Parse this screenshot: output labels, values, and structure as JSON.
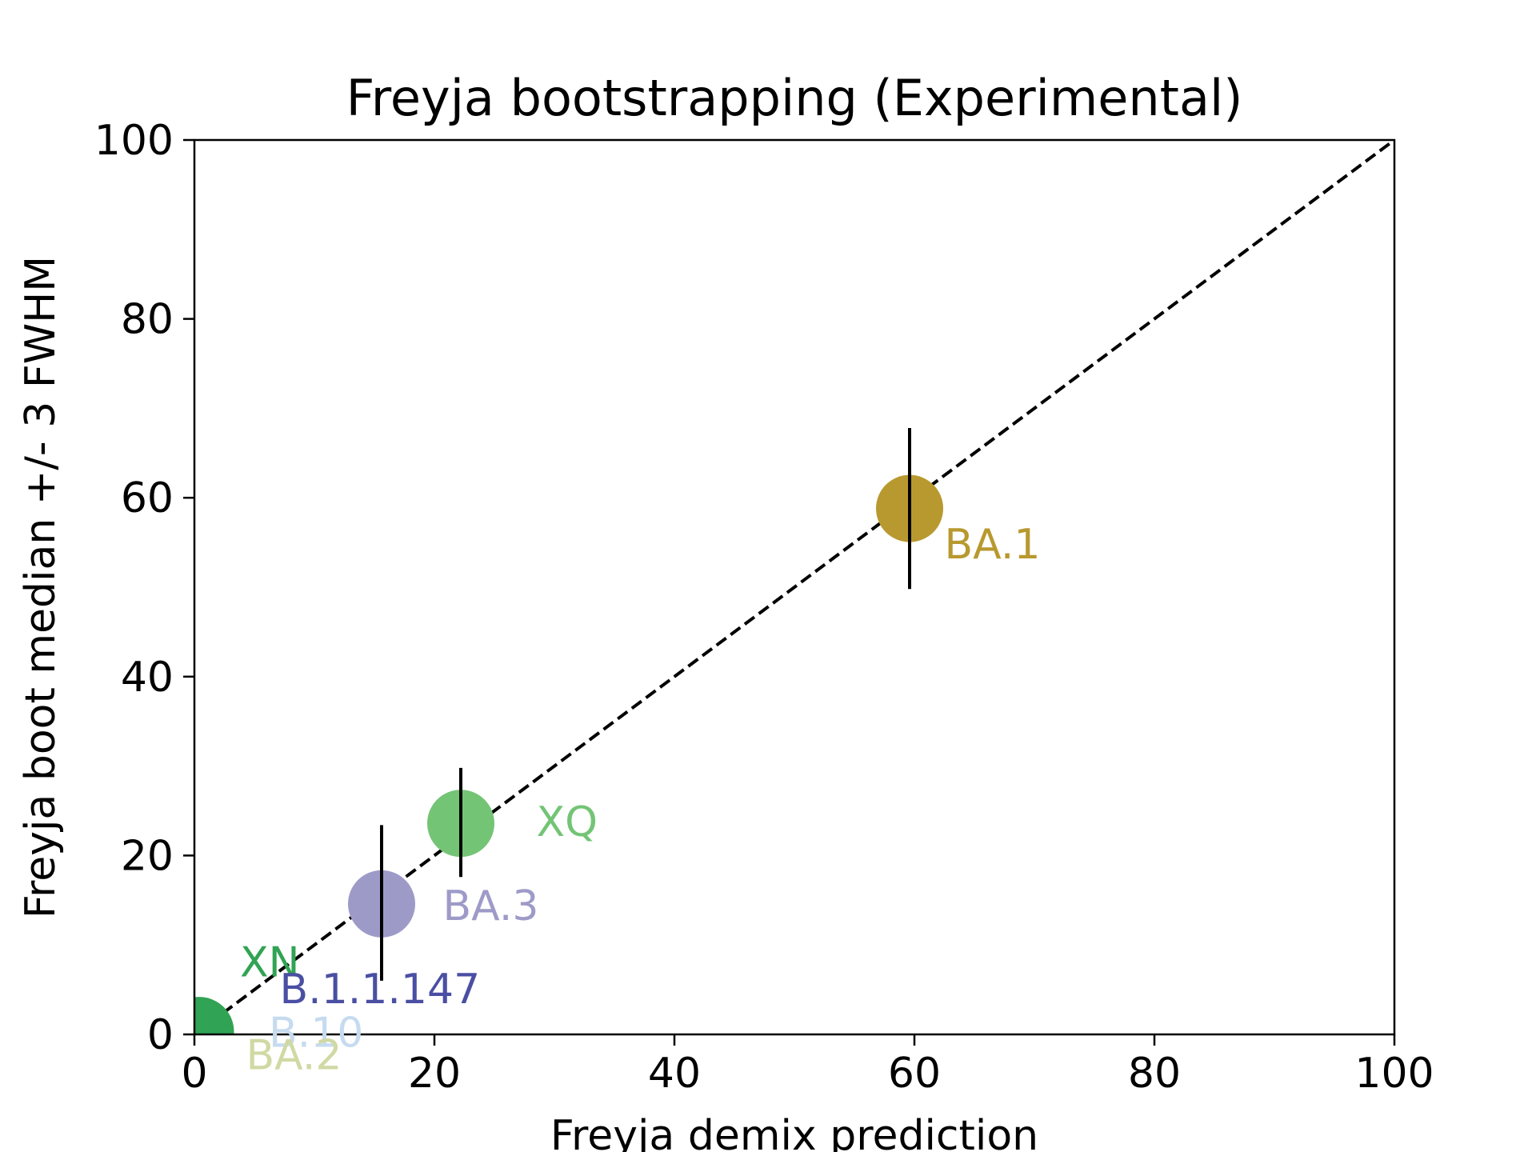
{
  "chart_data": {
    "type": "scatter",
    "title": "Freyja bootstrapping (Experimental)",
    "xlabel": "Freyja demix prediction",
    "ylabel": "Freyja boot median +/- 3 FWHM",
    "xlim": [
      0,
      100
    ],
    "ylim": [
      0,
      100
    ],
    "xticks": [
      "0",
      "20",
      "40",
      "60",
      "80",
      "100"
    ],
    "yticks": [
      "0",
      "20",
      "40",
      "60",
      "80",
      "100"
    ],
    "grid": false,
    "reference_line": {
      "style": "dashed",
      "color": "#000000",
      "from": [
        0,
        0
      ],
      "to": [
        100,
        100
      ]
    },
    "points": [
      {
        "label": "BA.1",
        "x": 59.6,
        "y": 58.8,
        "err_low": 49.8,
        "err_high": 67.8,
        "color": "#b8992f",
        "label_x": 62.5,
        "label_y": 53.2
      },
      {
        "label": "XQ",
        "x": 22.2,
        "y": 23.6,
        "err_low": 17.6,
        "err_high": 29.8,
        "color": "#74c476",
        "label_x": 28.5,
        "label_y": 22.2
      },
      {
        "label": "BA.3",
        "x": 15.6,
        "y": 14.6,
        "err_low": 6.0,
        "err_high": 23.4,
        "color": "#9e9ac8",
        "label_x": 20.7,
        "label_y": 12.8
      },
      {
        "label": "XN",
        "x": 0.4,
        "y": 0.3,
        "err_low": null,
        "err_high": null,
        "color": "#31a354",
        "label_x": 3.8,
        "label_y": 6.5
      },
      {
        "label": "B.1.1.147",
        "x": 0.3,
        "y": 0.2,
        "err_low": null,
        "err_high": null,
        "color": "#4a4fa3",
        "label_x": 7.1,
        "label_y": 3.5
      },
      {
        "label": "B.10",
        "x": 0.2,
        "y": 0.2,
        "err_low": null,
        "err_high": null,
        "color": "#c6dbef",
        "label_x": 6.2,
        "label_y": -1.4
      },
      {
        "label": "BA.2",
        "x": 0.1,
        "y": 0.1,
        "err_low": null,
        "err_high": null,
        "color": "#d0d9a3",
        "label_x": 4.3,
        "label_y": -3.9
      }
    ]
  }
}
